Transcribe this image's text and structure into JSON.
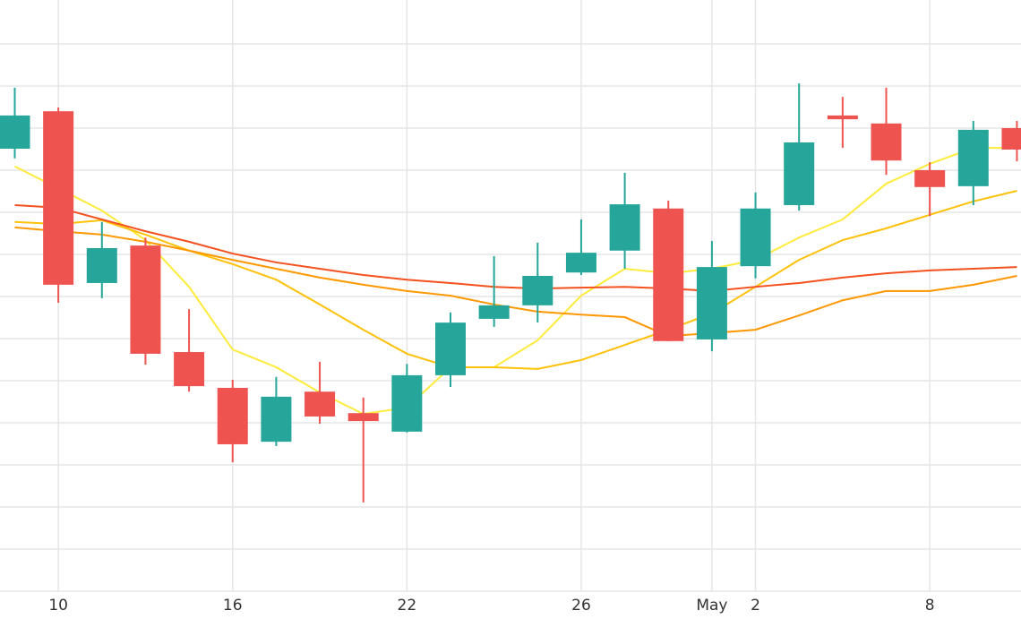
{
  "chart_data": {
    "type": "candlestick",
    "categories": [
      null,
      "10",
      null,
      null,
      null,
      "16",
      null,
      null,
      null,
      "22",
      null,
      null,
      null,
      "26",
      null,
      null,
      "May",
      "2",
      null,
      null,
      null,
      "8",
      null,
      null
    ],
    "open": [
      10.51,
      11.4,
      7.32,
      8.21,
      5.68,
      4.83,
      3.55,
      4.74,
      4.23,
      3.79,
      5.13,
      6.47,
      6.79,
      7.57,
      8.09,
      9.09,
      5.98,
      7.72,
      9.17,
      11.3,
      11.11,
      10.0,
      9.62,
      11.0
    ],
    "high": [
      11.96,
      11.49,
      8.77,
      8.4,
      6.7,
      5.02,
      5.09,
      5.45,
      4.6,
      5.4,
      6.62,
      7.96,
      8.28,
      8.83,
      9.94,
      9.28,
      8.32,
      9.47,
      12.06,
      11.74,
      11.96,
      10.19,
      11.17,
      11.17
    ],
    "low": [
      10.28,
      6.85,
      6.96,
      5.38,
      4.74,
      3.06,
      3.45,
      3.98,
      2.11,
      3.77,
      4.85,
      6.28,
      6.38,
      7.51,
      7.66,
      5.94,
      5.7,
      7.43,
      9.04,
      10.53,
      9.89,
      8.91,
      9.17,
      10.21
    ],
    "close": [
      11.3,
      7.28,
      8.15,
      5.64,
      4.87,
      3.49,
      4.62,
      4.15,
      4.04,
      5.13,
      6.38,
      6.79,
      7.49,
      8.04,
      9.19,
      5.94,
      7.7,
      9.09,
      10.66,
      11.21,
      10.23,
      9.6,
      10.96,
      10.49
    ],
    "up_color": "#26a69a",
    "down_color": "#ef5350",
    "lines": [
      {
        "color": "#ffeb3b",
        "values": [
          10.09,
          9.57,
          9.04,
          8.34,
          7.23,
          5.74,
          5.32,
          4.72,
          4.21,
          4.36,
          5.32,
          5.32,
          5.96,
          7.02,
          7.66,
          7.55,
          7.66,
          7.87,
          8.4,
          8.83,
          9.68,
          10.15,
          10.53,
          10.53
        ]
      },
      {
        "color": "#ffc107",
        "values": [
          8.77,
          8.72,
          8.81,
          8.47,
          8.09,
          7.77,
          7.4,
          6.81,
          6.21,
          5.64,
          5.32,
          5.32,
          5.28,
          5.49,
          5.85,
          6.21,
          6.6,
          7.23,
          7.87,
          8.34,
          8.62,
          8.94,
          9.26,
          9.51
        ]
      },
      {
        "color": "#ff9800",
        "values": [
          8.64,
          8.55,
          8.47,
          8.3,
          8.09,
          7.87,
          7.66,
          7.45,
          7.28,
          7.13,
          7.02,
          6.81,
          6.64,
          6.57,
          6.51,
          6.06,
          6.13,
          6.21,
          6.55,
          6.91,
          7.13,
          7.13,
          7.28,
          7.49
        ]
      },
      {
        "color": "#f4511e",
        "values": [
          9.17,
          9.11,
          8.83,
          8.55,
          8.3,
          8.02,
          7.81,
          7.66,
          7.51,
          7.4,
          7.32,
          7.23,
          7.19,
          7.21,
          7.23,
          7.19,
          7.13,
          7.23,
          7.32,
          7.45,
          7.55,
          7.62,
          7.66,
          7.7
        ]
      }
    ],
    "ylim": [
      0,
      14
    ],
    "yticks": [
      1,
      2,
      3,
      4,
      5,
      6,
      7,
      8,
      9,
      10,
      11,
      12,
      13
    ],
    "grid": true
  }
}
